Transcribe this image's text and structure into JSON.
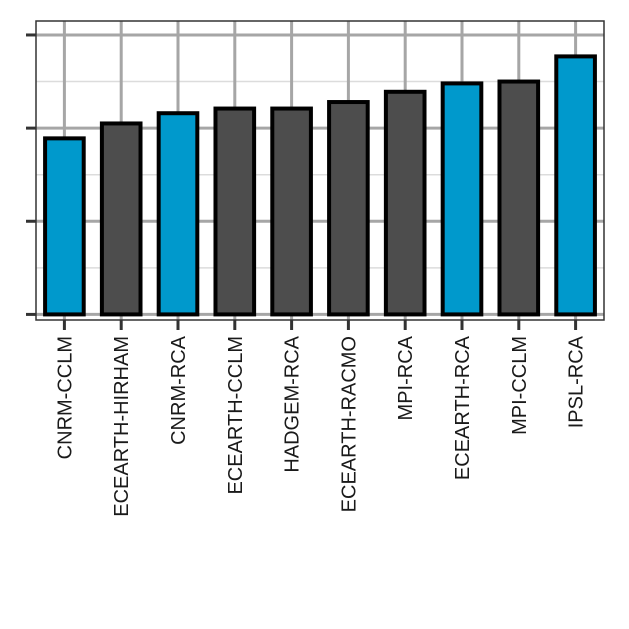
{
  "chart_data": {
    "type": "bar",
    "title": "",
    "xlabel": "",
    "ylabel": "",
    "categories": [
      "CNRM-CCLM",
      "ECEARTH-HIRHAM",
      "CNRM-RCA",
      "ECEARTH-CCLM",
      "HADGEM-RCA",
      "ECEARTH-RACMO",
      "MPI-RCA",
      "ECEARTH-RCA",
      "MPI-CCLM",
      "IPSL-RCA"
    ],
    "values": [
      1.89,
      2.05,
      2.16,
      2.21,
      2.21,
      2.28,
      2.39,
      2.48,
      2.5,
      2.77
    ],
    "ylim": [
      -0.06,
      3.15
    ],
    "yticks": [
      0,
      1,
      2,
      3
    ],
    "y_tick_labels_visible": false,
    "highlighted": [
      true,
      false,
      true,
      false,
      false,
      false,
      false,
      true,
      false,
      true
    ],
    "grid": true,
    "legend": "none",
    "colors": {
      "highlight": "#0099cc",
      "default": "#4d4d4d",
      "outline": "#000000",
      "grid_major": "#a6a6a6",
      "grid_minor": "#dcdcdc",
      "panel_border": "#333333"
    }
  }
}
